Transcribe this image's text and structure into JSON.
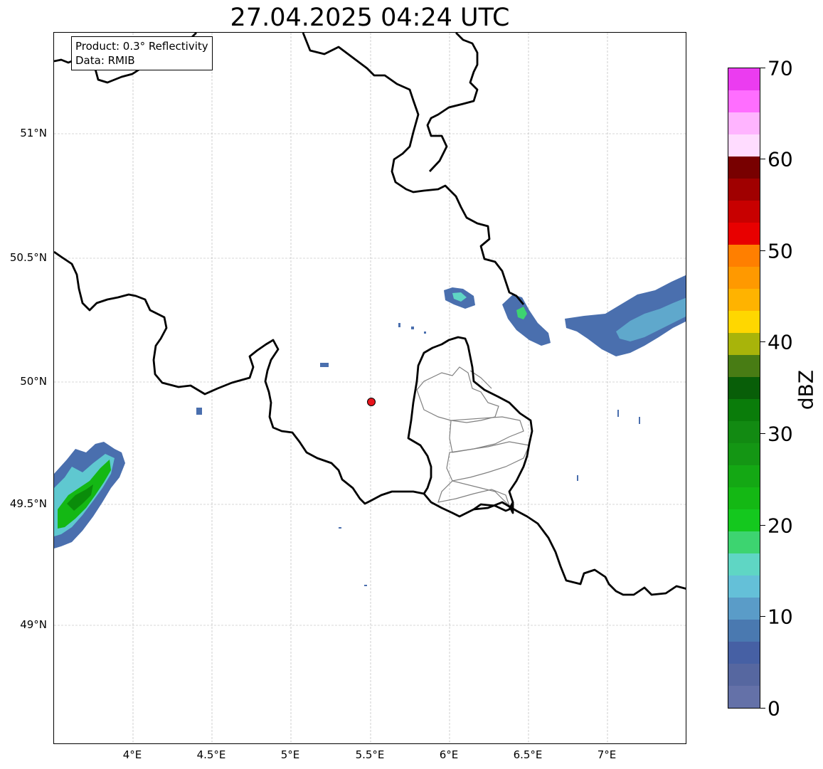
{
  "title": "27.04.2025 04:24 UTC",
  "info_box": {
    "product": "Product: 0.3° Reflectivity",
    "data_source": "Data: RMIB"
  },
  "map": {
    "lon_range": [
      3.5,
      7.5
    ],
    "lat_range": [
      48.55,
      51.42
    ],
    "x_ticks": [
      "4°E",
      "4.5°E",
      "5°E",
      "5.5°E",
      "6°E",
      "6.5°E",
      "7°E"
    ],
    "y_ticks": [
      "51°N",
      "50.5°N",
      "50°N",
      "49.5°N",
      "49°N"
    ],
    "radar_site": {
      "lon": 5.5,
      "lat": 49.915,
      "color": "#e8141c"
    },
    "gridlines": true,
    "border_color": "#000000",
    "province_border_color": "#808080"
  },
  "colorbar": {
    "label": "dBZ",
    "ticks": [
      "0",
      "10",
      "20",
      "30",
      "40",
      "50",
      "60",
      "70"
    ],
    "range": [
      0,
      70
    ],
    "colors": [
      "#6471a8",
      "#5667a0",
      "#4660a4",
      "#4a79b0",
      "#5a9cc8",
      "#64c0d8",
      "#5fd6c4",
      "#3dd470",
      "#14c81e",
      "#14b814",
      "#14a814",
      "#149614",
      "#128a12",
      "#0a7c0a",
      "#085e08",
      "#487c14",
      "#a8b40a",
      "#ffd700",
      "#ffb300",
      "#ff9900",
      "#ff7f00",
      "#e80000",
      "#c80000",
      "#a00000",
      "#780000",
      "#ffdcff",
      "#ffb4ff",
      "#ff6eff",
      "#eb3cf0"
    ]
  }
}
